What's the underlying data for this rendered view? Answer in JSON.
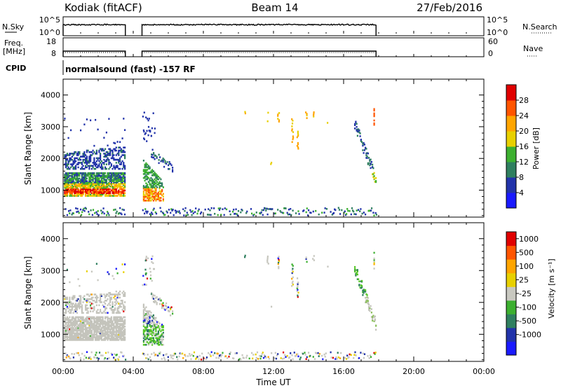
{
  "header": {
    "station": "Kodiak (fitACF)",
    "beam": "Beam 14",
    "date": "27/Feb/2016"
  },
  "top_panels": {
    "nsky_label": "N.Sky",
    "nsky_ticks": [
      "10^5",
      "10^0"
    ],
    "nsearch_label": "N.Search",
    "nsearch_ticks": [
      "10^5",
      "10^0"
    ],
    "freq_label_line1": "Freq.",
    "freq_label_line2": "[MHz]",
    "freq_ticks": [
      "18",
      "8"
    ],
    "nave_label": "Nave",
    "nave_ticks": [
      "60",
      "0"
    ],
    "cpid_label": "CPID",
    "cpid_text": "normalsound (fast) -157 RF"
  },
  "chart_data": [
    {
      "type": "heatmap",
      "name": "power",
      "ylabel": "Slant Range [km]",
      "yticks": [
        "1000",
        "2000",
        "3000",
        "4000"
      ],
      "ylim": [
        150,
        4500
      ],
      "xlim": [
        0,
        24
      ],
      "colorbar_label": "Power [dB]",
      "colorbar_ticks": [
        "4",
        "8",
        "12",
        "16",
        "20",
        "24",
        "28"
      ],
      "colors": [
        "#1a1aff",
        "#2233aa",
        "#2f7f5f",
        "#3db030",
        "#e8d000",
        "#ffa500",
        "#ff5500",
        "#e00000"
      ],
      "data_gaps_hours": [
        [
          3.55,
          4.5
        ],
        [
          17.85,
          24
        ]
      ]
    },
    {
      "type": "heatmap",
      "name": "velocity",
      "ylabel": "Slant Range [km]",
      "yticks": [
        "1000",
        "2000",
        "3000",
        "4000"
      ],
      "ylim": [
        150,
        4500
      ],
      "xlim": [
        0,
        24
      ],
      "xlabel": "Time UT",
      "xticks": [
        "00:00",
        "04:00",
        "08:00",
        "12:00",
        "16:00",
        "20:00",
        "00:00"
      ],
      "colorbar_label": "Velocity [m s⁻¹]",
      "colorbar_ticks": [
        "1000",
        "500",
        "100",
        "25",
        "-25",
        "-100",
        "-500",
        "-1000"
      ],
      "colors": [
        "#1a1aff",
        "#2233aa",
        "#2f7f5f",
        "#3db030",
        "#c8c8c0",
        "#e8d000",
        "#ffa500",
        "#ff5500",
        "#e00000"
      ],
      "ground_scatter_color": "#c0c0b8"
    }
  ]
}
